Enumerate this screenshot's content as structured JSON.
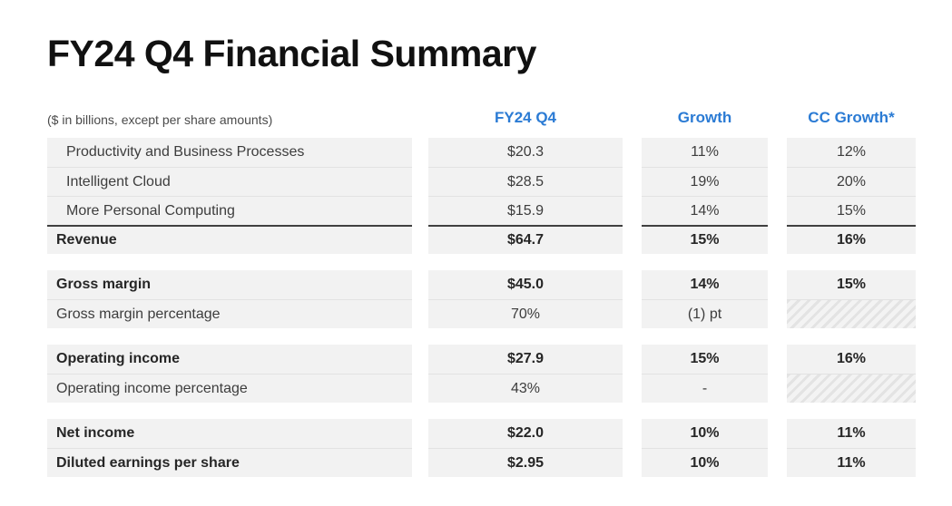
{
  "title": "FY24 Q4 Financial Summary",
  "accent_color": "#2b7bd4",
  "row_bg_color": "#f2f2f2",
  "table": {
    "meta": "($ in billions, except per share amounts)",
    "columns": [
      "FY24 Q4",
      "Growth",
      "CC Growth*"
    ],
    "sections": [
      {
        "rows": [
          {
            "label": "Productivity and Business Processes",
            "value": "$20.3",
            "growth": "11%",
            "cc_growth": "12%",
            "bold": false,
            "indent": true,
            "topline": false,
            "cc_hatched": false
          },
          {
            "label": "Intelligent Cloud",
            "value": "$28.5",
            "growth": "19%",
            "cc_growth": "20%",
            "bold": false,
            "indent": true,
            "topline": false,
            "cc_hatched": false
          },
          {
            "label": "More Personal Computing",
            "value": "$15.9",
            "growth": "14%",
            "cc_growth": "15%",
            "bold": false,
            "indent": true,
            "topline": false,
            "cc_hatched": false
          },
          {
            "label": "Revenue",
            "value": "$64.7",
            "growth": "15%",
            "cc_growth": "16%",
            "bold": true,
            "indent": false,
            "topline": true,
            "cc_hatched": false
          }
        ]
      },
      {
        "rows": [
          {
            "label": "Gross margin",
            "value": "$45.0",
            "growth": "14%",
            "cc_growth": "15%",
            "bold": true,
            "indent": false,
            "topline": false,
            "cc_hatched": false
          },
          {
            "label": "Gross margin percentage",
            "value": "70%",
            "growth": "(1) pt",
            "cc_growth": "",
            "bold": false,
            "indent": false,
            "topline": false,
            "cc_hatched": true
          }
        ]
      },
      {
        "rows": [
          {
            "label": "Operating income",
            "value": "$27.9",
            "growth": "15%",
            "cc_growth": "16%",
            "bold": true,
            "indent": false,
            "topline": false,
            "cc_hatched": false
          },
          {
            "label": "Operating income percentage",
            "value": "43%",
            "growth": "-",
            "cc_growth": "",
            "bold": false,
            "indent": false,
            "topline": false,
            "cc_hatched": true
          }
        ]
      },
      {
        "rows": [
          {
            "label": "Net income",
            "value": "$22.0",
            "growth": "10%",
            "cc_growth": "11%",
            "bold": true,
            "indent": false,
            "topline": false,
            "cc_hatched": false
          },
          {
            "label": "Diluted earnings per share",
            "value": "$2.95",
            "growth": "10%",
            "cc_growth": "11%",
            "bold": true,
            "indent": false,
            "topline": false,
            "cc_hatched": false
          }
        ]
      }
    ]
  }
}
